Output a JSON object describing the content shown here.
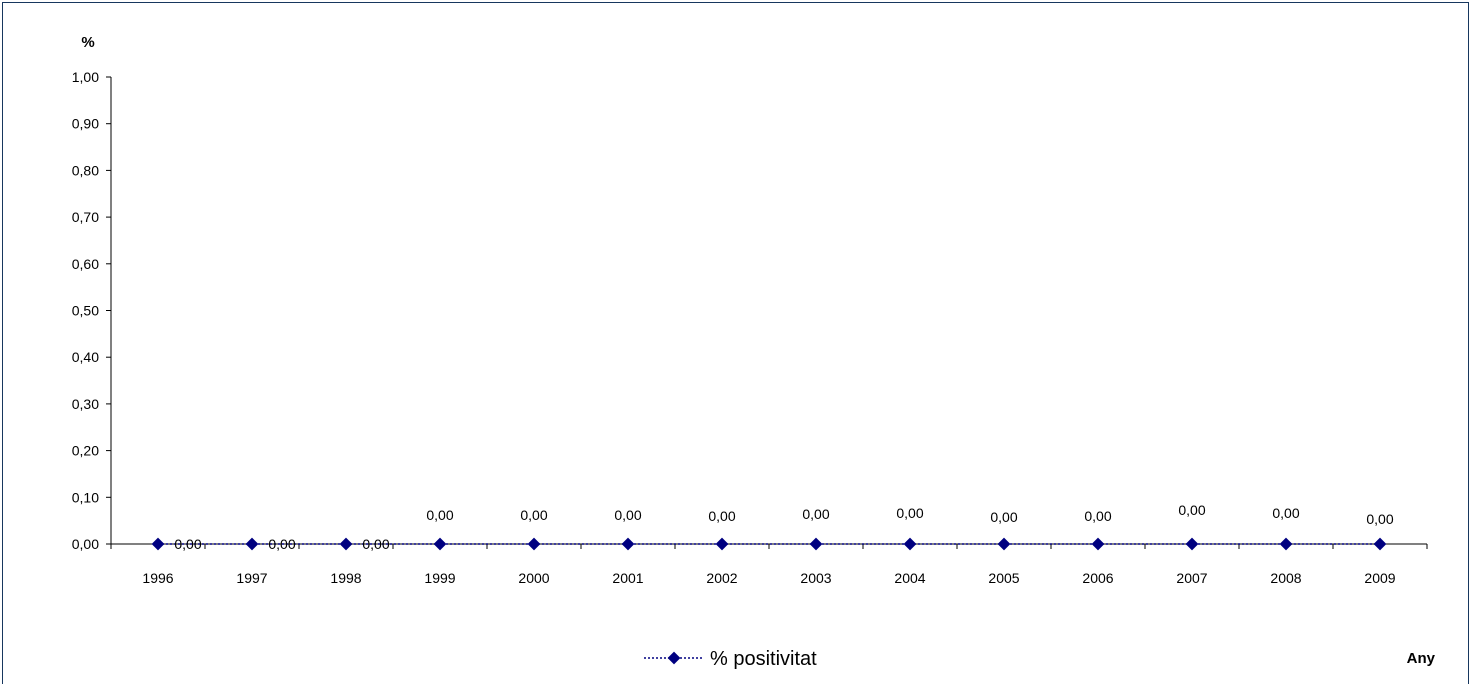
{
  "chart_data": {
    "type": "line",
    "title": "",
    "xlabel": "Any",
    "ylabel": "%",
    "categories": [
      "1996",
      "1997",
      "1998",
      "1999",
      "2000",
      "2001",
      "2002",
      "2003",
      "2004",
      "2005",
      "2006",
      "2007",
      "2008",
      "2009"
    ],
    "series": [
      {
        "name": "% positivitat",
        "values": [
          0,
          0,
          0,
          0,
          0,
          0,
          0,
          0,
          0,
          0,
          0,
          0,
          0,
          0
        ],
        "data_labels": [
          "0,00",
          "0,00",
          "0,00",
          "0,00",
          "0,00",
          "0,00",
          "0,00",
          "0,00",
          "0,00",
          "0,00",
          "0,00",
          "0,00",
          "0,00",
          "0,00"
        ]
      }
    ],
    "ylim": [
      0,
      1
    ],
    "y_ticks": [
      0,
      0.1,
      0.2,
      0.3,
      0.4,
      0.5,
      0.6,
      0.7,
      0.8,
      0.9,
      1.0
    ],
    "y_tick_labels": [
      "0,00",
      "0,10",
      "0,20",
      "0,30",
      "0,40",
      "0,50",
      "0,60",
      "0,70",
      "0,80",
      "0,90",
      "1,00"
    ],
    "grid": false,
    "legend_position": "bottom",
    "colors": {
      "series": "#000080",
      "axis": "#000000",
      "frame": "#17375e"
    }
  }
}
